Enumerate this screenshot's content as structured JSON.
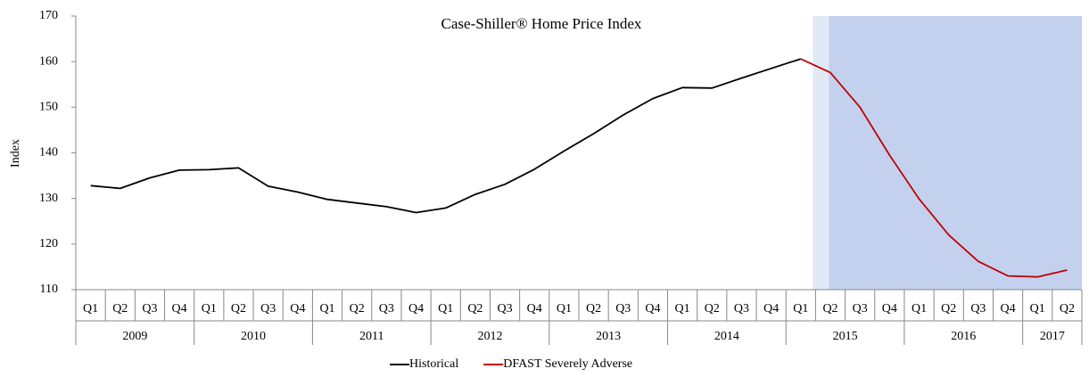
{
  "chart_data": {
    "type": "line",
    "title": "Case-Shiller® Home Price Index",
    "y_label": "Index",
    "category_groups": [
      {
        "label": "2009",
        "quarters": [
          "Q1",
          "Q2",
          "Q3",
          "Q4"
        ]
      },
      {
        "label": "2010",
        "quarters": [
          "Q1",
          "Q2",
          "Q3",
          "Q4"
        ]
      },
      {
        "label": "2011",
        "quarters": [
          "Q1",
          "Q2",
          "Q3",
          "Q4"
        ]
      },
      {
        "label": "2012",
        "quarters": [
          "Q1",
          "Q2",
          "Q3",
          "Q4"
        ]
      },
      {
        "label": "2013",
        "quarters": [
          "Q1",
          "Q2",
          "Q3",
          "Q4"
        ]
      },
      {
        "label": "2014",
        "quarters": [
          "Q1",
          "Q2",
          "Q3",
          "Q4"
        ]
      },
      {
        "label": "2015",
        "quarters": [
          "Q1",
          "Q2",
          "Q3",
          "Q4"
        ]
      },
      {
        "label": "2016",
        "quarters": [
          "Q1",
          "Q2",
          "Q3",
          "Q4"
        ]
      },
      {
        "label": "2017",
        "quarters": [
          "Q1",
          "Q2"
        ]
      }
    ],
    "series": [
      {
        "name": "Historical",
        "color": "#000000",
        "values": [
          132.8,
          132.2,
          134.5,
          136.2,
          136.3,
          136.7,
          132.7,
          131.4,
          129.8,
          129.0,
          128.2,
          126.9,
          127.9,
          130.9,
          133.1,
          136.4,
          140.4,
          144.2,
          148.3,
          151.9,
          154.3,
          154.2,
          156.4,
          158.5,
          160.6,
          null,
          null,
          null,
          null,
          null,
          null,
          null,
          null,
          null
        ]
      },
      {
        "name": "DFAST Severely Adverse",
        "color": "#c00000",
        "values": [
          null,
          null,
          null,
          null,
          null,
          null,
          null,
          null,
          null,
          null,
          null,
          null,
          null,
          null,
          null,
          null,
          null,
          null,
          null,
          null,
          null,
          null,
          null,
          null,
          160.6,
          157.6,
          150.0,
          139.5,
          129.9,
          122.0,
          116.2,
          113.0,
          112.8,
          114.3
        ]
      }
    ],
    "ylim": [
      110,
      170
    ],
    "yticks": [
      110,
      120,
      130,
      140,
      150,
      160,
      170
    ],
    "shade_color": "#c3d1ee",
    "legend": "bottom"
  }
}
